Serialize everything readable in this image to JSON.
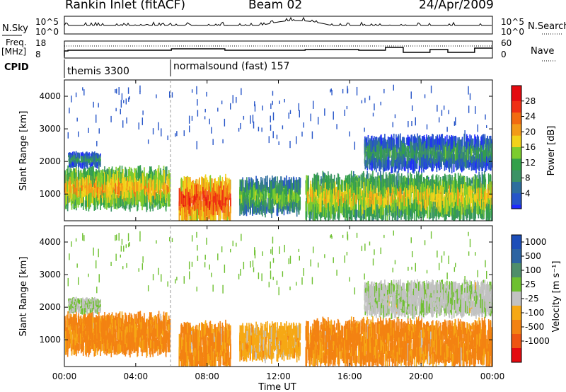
{
  "header": {
    "site": "Rankin Inlet (fitACF)",
    "beam": "Beam 02",
    "date": "24/Apr/2009"
  },
  "colors": {
    "power_scale": [
      "#1e2aff",
      "#2655c8",
      "#2e6e9e",
      "#3c9266",
      "#33a04a",
      "#7ccc2e",
      "#f2d21a",
      "#f39b18",
      "#f26b10",
      "#ef3014",
      "#e40a10"
    ],
    "velocity_scale": [
      "#1d4eb8",
      "#2d64a2",
      "#4f8e6a",
      "#6ec030",
      "#c2c2c2",
      "#f6a814",
      "#f38212",
      "#ee5412",
      "#e40a10"
    ]
  },
  "chart_data": {
    "type": "heatmap",
    "x_ticks": [
      "00:00",
      "04:00",
      "08:00",
      "12:00",
      "16:00",
      "20:00",
      "00:00"
    ],
    "xlabel": "Time UT",
    "top_panels": {
      "nsky": {
        "label": "N.Sky",
        "ticks": [
          "10^5",
          "10^0"
        ],
        "right_label": "N.Search",
        "right_ticks": [
          "10^5",
          "10^0"
        ]
      },
      "freq": {
        "label_line1": "Freq.",
        "label_line2": "[MHz]",
        "ticks": [
          "18",
          "8"
        ],
        "right_label": "Nave",
        "right_ticks": [
          "60",
          "0"
        ]
      },
      "cpid": {
        "label": "CPID",
        "segments": [
          {
            "start": "00:00",
            "text": "themis 3300"
          },
          {
            "start": "06:00",
            "text": "normalsound (fast) 157"
          }
        ]
      }
    },
    "panels": [
      {
        "name": "power",
        "ylabel": "Slant Range [km]",
        "ylim": [
          180,
          4500
        ],
        "yticks": [
          "1000",
          "2000",
          "3000",
          "4000"
        ],
        "colorbar_label": "Power [dB]",
        "colorbar_ticks": [
          "4",
          "8",
          "12",
          "16",
          "20",
          "24",
          "28"
        ]
      },
      {
        "name": "velocity",
        "ylabel": "Slant Range [km]",
        "ylim": [
          180,
          4500
        ],
        "yticks": [
          "1000",
          "2000",
          "3000",
          "4000"
        ],
        "colorbar_label": "Velocity [m s⁻¹]",
        "colorbar_ticks": [
          "1000",
          "500",
          "100",
          "25",
          "-25",
          "-100",
          "-500",
          "-1000"
        ]
      }
    ],
    "echo_regions": [
      {
        "t0": 0.0,
        "t1": 5.9,
        "r0": 650,
        "r1": 1700,
        "power_db": 16,
        "velocity": -200
      },
      {
        "t0": 0.2,
        "t1": 2.0,
        "r0": 1850,
        "r1": 2250,
        "power_db": 6,
        "velocity": 20
      },
      {
        "t0": 6.4,
        "t1": 9.3,
        "r0": 180,
        "r1": 1400,
        "power_db": 22,
        "velocity": -150
      },
      {
        "t0": 9.8,
        "t1": 13.2,
        "r0": 450,
        "r1": 1400,
        "power_db": 10,
        "velocity": -60
      },
      {
        "t0": 13.5,
        "t1": 24.0,
        "r0": 300,
        "r1": 1500,
        "power_db": 14,
        "velocity": -180
      },
      {
        "t0": 16.8,
        "t1": 24.0,
        "r0": 1800,
        "r1": 2700,
        "power_db": 6,
        "velocity": 10
      }
    ]
  }
}
